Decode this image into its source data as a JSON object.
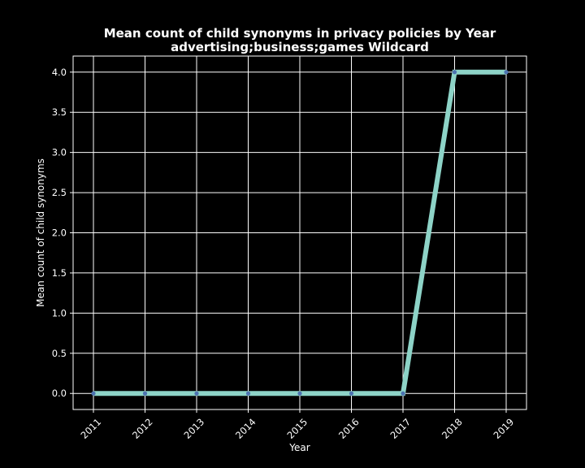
{
  "chart_data": {
    "type": "line",
    "title": "Mean count of child synonyms in privacy policies by Year",
    "subtitle": "advertising;business;games Wildcard",
    "xlabel": "Year",
    "ylabel": "Mean count of child synonyms",
    "x": [
      "2011",
      "2012",
      "2013",
      "2014",
      "2015",
      "2016",
      "2017",
      "2018",
      "2019"
    ],
    "series": [
      {
        "values": [
          0,
          0,
          0,
          0,
          0,
          0,
          0,
          4,
          4
        ]
      }
    ],
    "ylim": [
      -0.2,
      4.2
    ],
    "yticks": [
      "0.0",
      "0.5",
      "1.0",
      "1.5",
      "2.0",
      "2.5",
      "3.0",
      "3.5",
      "4.0"
    ],
    "grid": true,
    "colors": {
      "background": "#000000",
      "line": "#8dd3c7",
      "marker": "#4c72b0",
      "grid": "#ffffff",
      "text": "#ffffff"
    }
  }
}
